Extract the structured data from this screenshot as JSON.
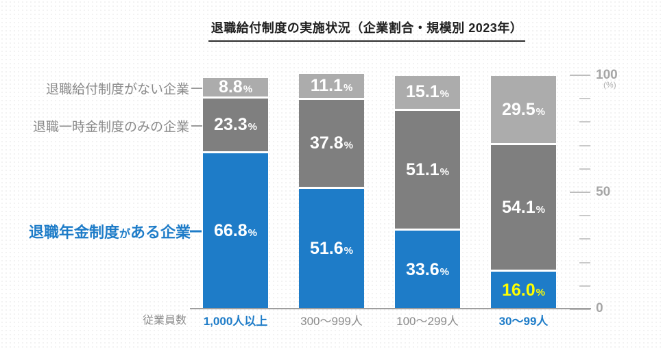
{
  "title": "退職給付制度の実施状況（企業割合・規模別 2023年）",
  "side_labels": {
    "no_system": "退職給付制度がない企業",
    "lump_sum_only": "退職一時金制度のみの企業",
    "pension_prefix": "退職年金制度",
    "pension_particle": "が",
    "pension_suffix": "ある企業"
  },
  "axis": {
    "x_title": "従業員数",
    "y_top": "100",
    "y_unit": "(%)",
    "y_mid": "50",
    "y_bottom": "0"
  },
  "colors": {
    "pension_blue": "#1e7cc8",
    "lump_sum_gray": "#7f7f7f",
    "no_system_gray": "#acacac",
    "highlight_value_text": "#ffff00",
    "value_text": "#ffffff"
  },
  "chart_data": {
    "type": "bar",
    "stacked": true,
    "title": "退職給付制度の実施状況（企業割合・規模別 2023年）",
    "x_axis_title": "従業員数",
    "categories": [
      "1,000人以上",
      "300～999人",
      "100～299人",
      "30～99人"
    ],
    "category_emphasis": [
      true,
      false,
      false,
      true
    ],
    "series": [
      {
        "name": "退職年金制度がある企業",
        "color": "#1e7cc8",
        "values": [
          66.8,
          51.6,
          33.6,
          16.0
        ],
        "label_colors": [
          "#ffffff",
          "#ffffff",
          "#ffffff",
          "#ffff00"
        ]
      },
      {
        "name": "退職一時金制度のみの企業",
        "color": "#7f7f7f",
        "values": [
          23.3,
          37.8,
          51.1,
          54.1
        ],
        "label_colors": [
          "#ffffff",
          "#ffffff",
          "#ffffff",
          "#ffffff"
        ]
      },
      {
        "name": "退職給付制度がない企業",
        "color": "#acacac",
        "values": [
          8.8,
          11.1,
          15.1,
          29.5
        ],
        "label_colors": [
          "#ffffff",
          "#ffffff",
          "#ffffff",
          "#ffffff"
        ]
      }
    ],
    "ylim": [
      0,
      100
    ],
    "y_ticks": {
      "major": [
        0,
        50,
        100
      ],
      "minor_step": 10,
      "unit": "(%)"
    },
    "grid": false,
    "legend_position": "left",
    "value_label_format": "0.0%"
  }
}
